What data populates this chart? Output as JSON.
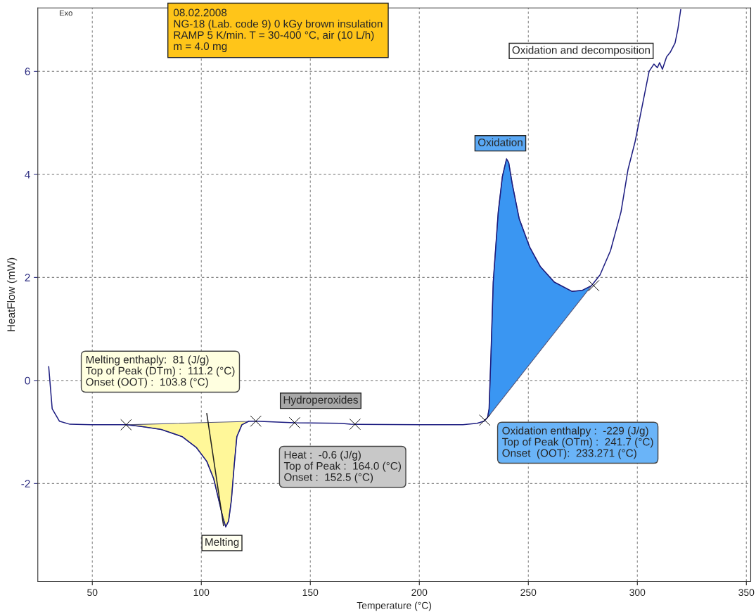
{
  "chart_data": {
    "type": "line",
    "xlabel": "Temperature (°C)",
    "ylabel": "HeatFlow (mW)",
    "xlim": [
      25,
      352
    ],
    "ylim": [
      -3.9,
      7.23
    ],
    "xticks": [
      50,
      100,
      150,
      200,
      250,
      300,
      350
    ],
    "yticks": [
      -2,
      0,
      2,
      4,
      6
    ],
    "grid": true,
    "marker": "none",
    "line_style": "solid",
    "series": [
      {
        "type": "area",
        "color": "#fff799",
        "x": [
          65.5,
          71.9,
          81.6,
          91.2,
          97.7,
          102.5,
          105.7,
          108.0,
          109.9,
          111.2,
          112.5,
          113.8,
          115.1,
          116.3,
          118.6,
          121.8,
          125.0
        ],
        "values": [
          -0.86,
          -0.89,
          -0.95,
          -1.09,
          -1.3,
          -1.57,
          -1.91,
          -2.32,
          -2.66,
          -2.84,
          -2.73,
          -2.32,
          -1.64,
          -1.09,
          -0.86,
          -0.79,
          -0.79
        ]
      },
      {
        "type": "area",
        "color": "#3a96f2",
        "x": [
          231.3,
          232.0,
          232.9,
          233.9,
          236.2,
          238.1,
          240.0,
          241.0,
          242.6,
          245.8,
          250.6,
          255.5,
          261.9,
          270.0,
          274.8,
          279.0
        ],
        "values": [
          -0.72,
          -0.55,
          0.55,
          1.91,
          3.27,
          3.96,
          4.3,
          4.23,
          3.82,
          3.14,
          2.59,
          2.21,
          1.91,
          1.73,
          1.75,
          1.84
        ]
      },
      {
        "color": "#1c1c80",
        "x": [
          30.0,
          31.6,
          34.9,
          39.7,
          49.4,
          65.5,
          71.9,
          81.6,
          91.2,
          97.7,
          102.5,
          105.7,
          108.0,
          109.9,
          111.2,
          112.5,
          113.8,
          115.1,
          116.3,
          118.6,
          121.8,
          125.0,
          142.8,
          163.7,
          168.5,
          200.7,
          220.0,
          226.5,
          229.7,
          231.3,
          232.0,
          232.9,
          233.9,
          236.2,
          238.1,
          240.0,
          241.0,
          242.6,
          245.8,
          250.6,
          255.5,
          261.9,
          270.0,
          274.8,
          279.0,
          282.9,
          287.7,
          292.5,
          295.7,
          299.0,
          302.2,
          305.4,
          307.6,
          309.2,
          310.2,
          311.5,
          313.4,
          315.1,
          317.3,
          318.6,
          319.9
        ],
        "values": [
          0.27,
          -0.55,
          -0.79,
          -0.85,
          -0.86,
          -0.86,
          -0.89,
          -0.95,
          -1.09,
          -1.3,
          -1.57,
          -1.91,
          -2.32,
          -2.66,
          -2.84,
          -2.73,
          -2.32,
          -1.64,
          -1.09,
          -0.86,
          -0.79,
          -0.79,
          -0.82,
          -0.83,
          -0.85,
          -0.86,
          -0.86,
          -0.83,
          -0.79,
          -0.72,
          -0.55,
          0.55,
          1.91,
          3.27,
          3.96,
          4.3,
          4.23,
          3.82,
          3.14,
          2.59,
          2.21,
          1.91,
          1.73,
          1.75,
          1.84,
          2.05,
          2.52,
          3.27,
          4.09,
          4.64,
          5.32,
          6.0,
          6.14,
          6.07,
          6.17,
          6.04,
          6.28,
          6.37,
          6.55,
          6.82,
          7.2
        ]
      },
      {
        "color": "#222222",
        "x": [
          102.5,
          110.2
        ],
        "values": [
          -0.64,
          -2.82
        ]
      },
      {
        "type": "scatter",
        "color": "#000000",
        "marker": "cross",
        "x": [
          65.5,
          125.0,
          142.8,
          170.5,
          230.0,
          280.0
        ],
        "values": [
          -0.86,
          -0.79,
          -0.82,
          -0.85,
          -0.77,
          1.84
        ]
      }
    ],
    "annotations": [
      "Exo",
      "08.02.2008\nNG-18 (Lab. code 9) 0 kGy brown insulation\nRAMP 5 K/min. T = 30-400 °C, air (10 L/h)\nm = 4.0 mg",
      "Oxidation and decomposition",
      "Oxidation",
      "Melting enthaply:  81 (J/g)\nTop of Peak (DTm) :  111.2 (°C)\nOnset (OOT) :  103.8 (°C)",
      "Hydroperoxides",
      "Heat :  -0.6 (J/g)\nTop of Peak :  164.0 (°C)\nOnset :  152.5 (°C)",
      "Oxidation enthalpy :  -229 (J/g)\nTop of Peak (OTm) :  241.7 (°C)\nOnset  (OOT):  233.271 (°C)",
      "Melting"
    ]
  }
}
